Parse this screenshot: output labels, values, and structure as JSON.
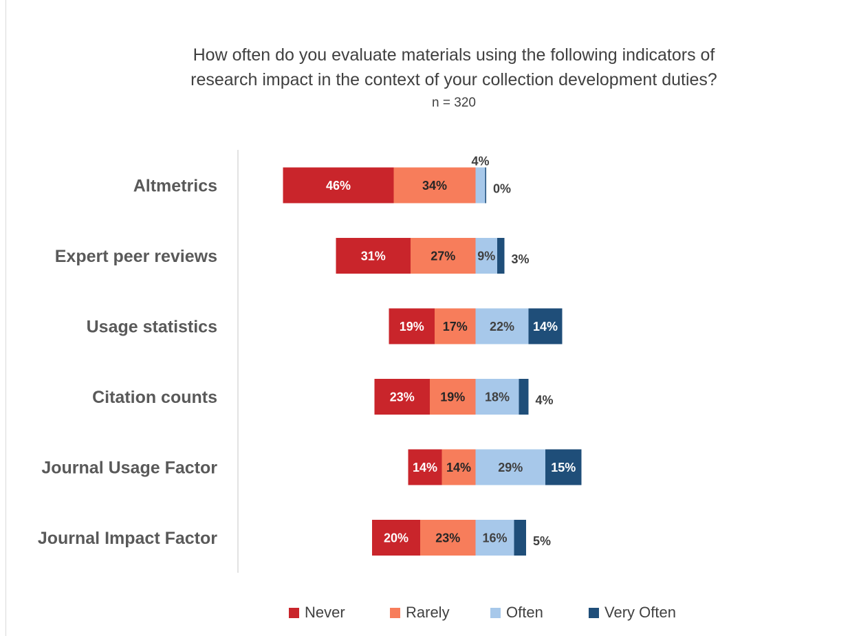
{
  "colors": {
    "never": "#c9252b",
    "rarely": "#f77d5b",
    "often": "#a7c8ea",
    "very_often": "#1f4e79"
  },
  "chart_data": {
    "type": "bar",
    "orientation": "horizontal",
    "stacked": "diverging",
    "title": "How often do you evaluate materials using the following indicators of research impact in the context of your collection development duties?",
    "title_lines": [
      "How often do you evaluate materials using the following indicators of",
      "research impact in the context of your collection development duties?"
    ],
    "subtitle": "n = 320",
    "xlabel": "",
    "ylabel": "",
    "grid": false,
    "legend_position": "bottom",
    "categories": [
      "Altmetrics",
      "Expert peer reviews",
      "Usage statistics",
      "Citation counts",
      "Journal Usage Factor",
      "Journal Impact Factor"
    ],
    "series": [
      {
        "name": "Never",
        "side": "negative",
        "values": [
          46,
          31,
          19,
          23,
          14,
          20
        ],
        "labels": [
          "46%",
          "31%",
          "19%",
          "23%",
          "14%",
          "20%"
        ]
      },
      {
        "name": "Rarely",
        "side": "negative",
        "values": [
          34,
          27,
          17,
          19,
          14,
          23
        ],
        "labels": [
          "34%",
          "27%",
          "17%",
          "19%",
          "14%",
          "23%"
        ]
      },
      {
        "name": "Often",
        "side": "positive",
        "values": [
          4,
          9,
          22,
          18,
          29,
          16
        ],
        "labels": [
          "4%",
          "9%",
          "22%",
          "18%",
          "29%",
          "16%"
        ]
      },
      {
        "name": "Very Often",
        "side": "positive",
        "values": [
          0,
          3,
          14,
          4,
          15,
          5
        ],
        "labels": [
          "0%",
          "3%",
          "14%",
          "4%",
          "15%",
          "5%"
        ]
      }
    ]
  }
}
